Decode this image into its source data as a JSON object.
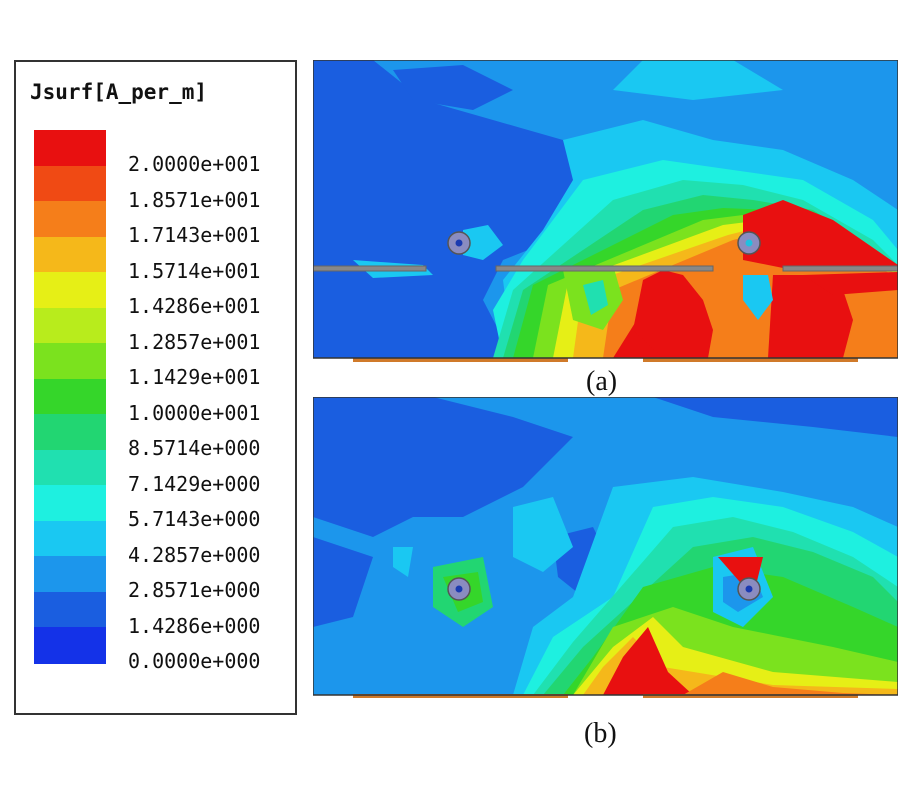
{
  "legend": {
    "title": "Jsurf[A_per_m]",
    "labels": [
      "2.0000e+001",
      "1.8571e+001",
      "1.7143e+001",
      "1.5714e+001",
      "1.4286e+001",
      "1.2857e+001",
      "1.1429e+001",
      "1.0000e+001",
      "8.5714e+000",
      "7.1429e+000",
      "5.7143e+000",
      "4.2857e+000",
      "2.8571e+000",
      "1.4286e+000",
      "0.0000e+000"
    ],
    "colors": [
      "#e81010",
      "#f04a14",
      "#f57e1a",
      "#f5b81a",
      "#e6ef16",
      "#b8ec1c",
      "#7be21e",
      "#35d62a",
      "#22d672",
      "#20e0b0",
      "#1ef0e0",
      "#1ac8f2",
      "#1c96ec",
      "#1a5ee0",
      "#1432e8"
    ]
  },
  "panels": [
    {
      "caption": "(a)"
    },
    {
      "caption": "(b)"
    }
  ]
}
